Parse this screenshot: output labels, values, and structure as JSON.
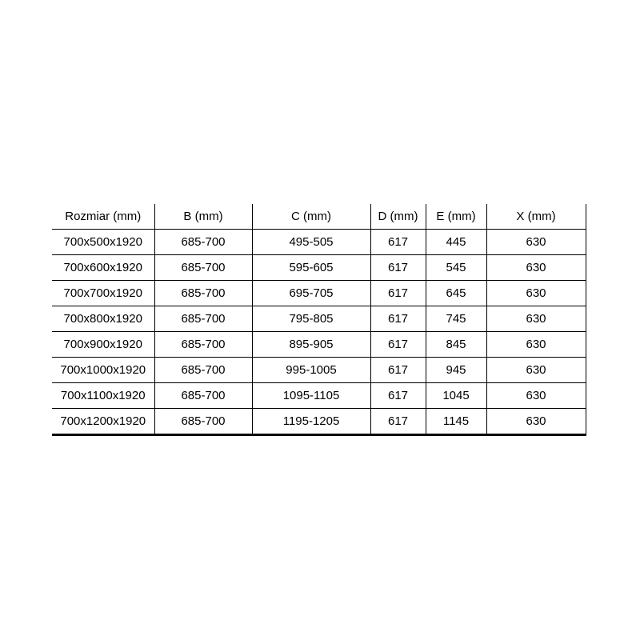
{
  "colors": {
    "background": "#ffffff",
    "border": "#000000",
    "text": "#000000"
  },
  "chart_data": {
    "type": "table",
    "title": "",
    "columns": [
      "Rozmiar (mm)",
      "B (mm)",
      "C (mm)",
      "D (mm)",
      "E (mm)",
      "X (mm)"
    ],
    "rows": [
      [
        "700x500x1920",
        "685-700",
        "495-505",
        "617",
        "445",
        "630"
      ],
      [
        "700x600x1920",
        "685-700",
        "595-605",
        "617",
        "545",
        "630"
      ],
      [
        "700x700x1920",
        "685-700",
        "695-705",
        "617",
        "645",
        "630"
      ],
      [
        "700x800x1920",
        "685-700",
        "795-805",
        "617",
        "745",
        "630"
      ],
      [
        "700x900x1920",
        "685-700",
        "895-905",
        "617",
        "845",
        "630"
      ],
      [
        "700x1000x1920",
        "685-700",
        "995-1005",
        "617",
        "945",
        "630"
      ],
      [
        "700x1100x1920",
        "685-700",
        "1095-1105",
        "617",
        "1045",
        "630"
      ],
      [
        "700x1200x1920",
        "685-700",
        "1195-1205",
        "617",
        "1145",
        "630"
      ]
    ]
  }
}
